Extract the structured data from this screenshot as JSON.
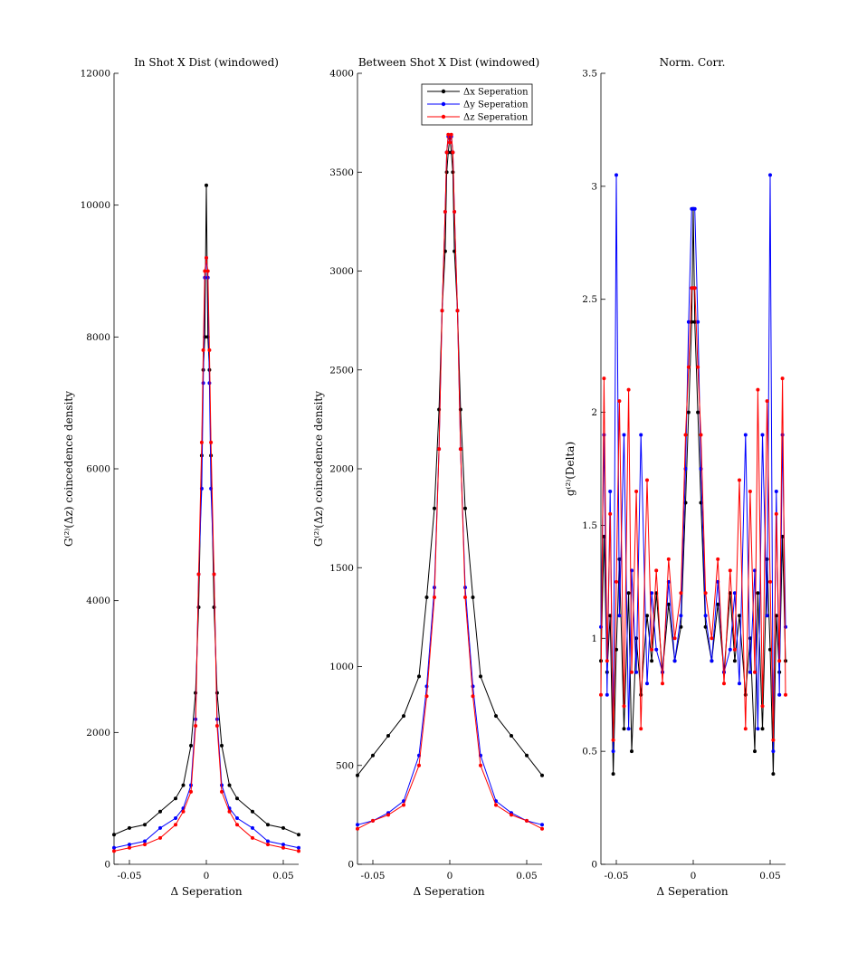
{
  "chart_data": [
    {
      "type": "line",
      "title": "In Shot X Dist (windowed)",
      "xlabel": "Δ Seperation",
      "ylabel": "G⁽²⁾(Δz) coincedence density",
      "xlim": [
        -0.06,
        0.06
      ],
      "ylim": [
        0,
        12000
      ],
      "xticks": [
        -0.05,
        0,
        0.05
      ],
      "xtick_labels": [
        "-0.05",
        "0",
        "0.05"
      ],
      "yticks": [
        0,
        2000,
        4000,
        6000,
        8000,
        10000,
        12000
      ],
      "ytick_labels": [
        "0",
        "2000",
        "4000",
        "6000",
        "8000",
        "10000",
        "12000"
      ],
      "x": [
        -0.06,
        -0.05,
        -0.04,
        -0.03,
        -0.02,
        -0.015,
        -0.01,
        -0.007,
        -0.005,
        -0.003,
        -0.002,
        -0.001,
        0,
        0.001,
        0.002,
        0.003,
        0.005,
        0.007,
        0.01,
        0.015,
        0.02,
        0.03,
        0.04,
        0.05,
        0.06
      ],
      "series": [
        {
          "color": "#000000",
          "values": [
            450,
            550,
            600,
            800,
            1000,
            1200,
            1800,
            2600,
            3900,
            6200,
            7500,
            8000,
            10300,
            8000,
            7500,
            6200,
            3900,
            2600,
            1800,
            1200,
            1000,
            800,
            600,
            550,
            450
          ]
        },
        {
          "color": "#0000ff",
          "values": [
            250,
            300,
            350,
            550,
            700,
            850,
            1200,
            2200,
            4400,
            5700,
            7300,
            8900,
            9200,
            8900,
            7300,
            5700,
            4400,
            2200,
            1200,
            850,
            700,
            550,
            350,
            300,
            250
          ]
        },
        {
          "color": "#ff0000",
          "values": [
            200,
            250,
            300,
            400,
            600,
            800,
            1100,
            2100,
            4400,
            6400,
            7800,
            9000,
            9200,
            9000,
            7800,
            6400,
            4400,
            2100,
            1100,
            800,
            600,
            400,
            300,
            250,
            200
          ]
        }
      ]
    },
    {
      "type": "line",
      "title": "Between Shot X Dist (windowed)",
      "xlabel": "Δ Seperation",
      "ylabel": "G⁽²⁾(Δz) coincedence density",
      "xlim": [
        -0.06,
        0.06
      ],
      "ylim": [
        0,
        4000
      ],
      "xticks": [
        -0.05,
        0,
        0.05
      ],
      "xtick_labels": [
        "-0.05",
        "0",
        "0.05"
      ],
      "yticks": [
        0,
        500,
        1000,
        1500,
        2000,
        2500,
        3000,
        3500,
        4000
      ],
      "ytick_labels": [
        "0",
        "500",
        "1000",
        "1500",
        "2000",
        "2500",
        "3000",
        "3500",
        "4000"
      ],
      "legend": {
        "position": "top-right",
        "entries": [
          "Δx Seperation",
          "Δy Seperation",
          "Δz Seperation"
        ]
      },
      "x": [
        -0.06,
        -0.05,
        -0.04,
        -0.03,
        -0.02,
        -0.015,
        -0.01,
        -0.007,
        -0.005,
        -0.003,
        -0.002,
        -0.001,
        0,
        0.001,
        0.002,
        0.003,
        0.005,
        0.007,
        0.01,
        0.015,
        0.02,
        0.03,
        0.04,
        0.05,
        0.06
      ],
      "series": [
        {
          "color": "#000000",
          "values": [
            450,
            550,
            650,
            750,
            950,
            1350,
            1800,
            2300,
            2800,
            3100,
            3500,
            3600,
            3680,
            3600,
            3500,
            3100,
            2800,
            2300,
            1800,
            1350,
            950,
            750,
            650,
            550,
            450
          ]
        },
        {
          "color": "#0000ff",
          "values": [
            200,
            220,
            260,
            320,
            550,
            900,
            1400,
            2100,
            2800,
            3300,
            3600,
            3680,
            3650,
            3680,
            3600,
            3300,
            2800,
            2100,
            1400,
            900,
            550,
            320,
            260,
            220,
            200
          ]
        },
        {
          "color": "#ff0000",
          "values": [
            180,
            220,
            250,
            300,
            500,
            850,
            1350,
            2100,
            2800,
            3300,
            3600,
            3690,
            3650,
            3690,
            3600,
            3300,
            2800,
            2100,
            1350,
            850,
            500,
            300,
            250,
            220,
            180
          ]
        }
      ]
    },
    {
      "type": "line",
      "title": "Norm. Corr.",
      "xlabel": "Δ Seperation",
      "ylabel": "g⁽²⁾(Delta)",
      "xlim": [
        -0.06,
        0.06
      ],
      "ylim": [
        0,
        3.5
      ],
      "xticks": [
        -0.05,
        0,
        0.05
      ],
      "xtick_labels": [
        "-0.05",
        "0",
        "0.05"
      ],
      "yticks": [
        0,
        0.5,
        1,
        1.5,
        2,
        2.5,
        3,
        3.5
      ],
      "ytick_labels": [
        "0",
        "0.5",
        "1",
        "1.5",
        "2",
        "2.5",
        "3",
        "3.5"
      ],
      "x": [
        -0.06,
        -0.058,
        -0.056,
        -0.054,
        -0.052,
        -0.05,
        -0.048,
        -0.045,
        -0.042,
        -0.04,
        -0.037,
        -0.034,
        -0.03,
        -0.027,
        -0.024,
        -0.02,
        -0.016,
        -0.012,
        -0.008,
        -0.005,
        -0.003,
        -0.001,
        0,
        0.001,
        0.003,
        0.005,
        0.008,
        0.012,
        0.016,
        0.02,
        0.024,
        0.027,
        0.03,
        0.034,
        0.037,
        0.04,
        0.042,
        0.045,
        0.048,
        0.05,
        0.052,
        0.054,
        0.056,
        0.058,
        0.06
      ],
      "series": [
        {
          "color": "#000000",
          "values": [
            0.9,
            1.45,
            0.85,
            1.1,
            0.4,
            0.95,
            1.35,
            0.6,
            1.2,
            0.5,
            1.0,
            0.75,
            1.1,
            0.9,
            1.2,
            0.85,
            1.15,
            0.9,
            1.05,
            1.6,
            2.0,
            2.4,
            2.9,
            2.4,
            2.0,
            1.6,
            1.05,
            0.9,
            1.15,
            0.85,
            1.2,
            0.9,
            1.1,
            0.75,
            1.0,
            0.5,
            1.2,
            0.6,
            1.35,
            0.95,
            0.4,
            1.1,
            0.85,
            1.45,
            0.9
          ]
        },
        {
          "color": "#0000ff",
          "values": [
            1.05,
            1.9,
            0.75,
            1.65,
            0.5,
            3.05,
            1.1,
            1.9,
            0.6,
            1.3,
            0.85,
            1.9,
            0.8,
            1.2,
            0.95,
            0.85,
            1.25,
            0.9,
            1.1,
            1.75,
            2.4,
            2.9,
            2.9,
            2.9,
            2.4,
            1.75,
            1.1,
            0.9,
            1.25,
            0.85,
            0.95,
            1.2,
            0.8,
            1.9,
            0.85,
            1.3,
            0.6,
            1.9,
            1.1,
            3.05,
            0.5,
            1.65,
            0.75,
            1.9,
            1.05
          ]
        },
        {
          "color": "#ff0000",
          "values": [
            0.75,
            2.15,
            0.9,
            1.55,
            0.55,
            1.25,
            2.05,
            0.7,
            2.1,
            0.85,
            1.65,
            0.6,
            1.7,
            0.95,
            1.3,
            0.8,
            1.35,
            1.0,
            1.2,
            1.9,
            2.2,
            2.55,
            2.55,
            2.55,
            2.2,
            1.9,
            1.2,
            1.0,
            1.35,
            0.8,
            1.3,
            0.95,
            1.7,
            0.6,
            1.65,
            0.85,
            2.1,
            0.7,
            2.05,
            1.25,
            0.55,
            1.55,
            0.9,
            2.15,
            0.75
          ]
        }
      ]
    }
  ]
}
